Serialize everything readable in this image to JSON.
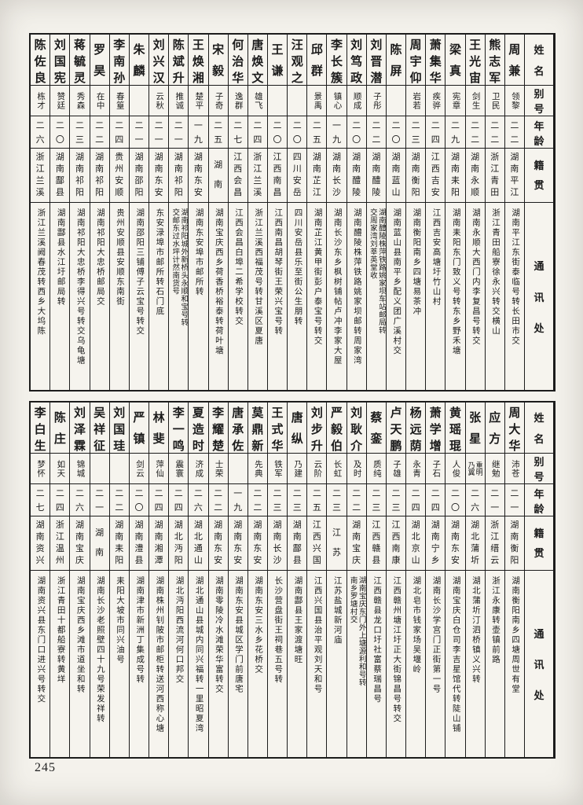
{
  "page": {
    "number": "245"
  },
  "headers": {
    "name": "姓名",
    "alias": "别号",
    "age": "年龄",
    "native": "籍贯",
    "address": "通讯处"
  },
  "tables": [
    {
      "people": [
        {
          "name": "周兼",
          "alias": "领黎",
          "age": "二二",
          "native": "湖南平江",
          "address": "湖南平江东街泰临号转长田市交"
        },
        {
          "name": "熊志军",
          "alias": "卫民",
          "age": "二二",
          "native": "浙江青田",
          "address": "浙江青田船寮徐永兴转交横山"
        },
        {
          "name": "王光宙",
          "alias": "剑生",
          "age": "二二",
          "native": "湖南永顺",
          "address": "湖南永顺大西门内李复昌号转交"
        },
        {
          "name": "梁真",
          "alias": "宪章",
          "age": "二九",
          "native": "湖南耒阳",
          "address": "湖南耒阳东门致义号转东乡野禾塘"
        },
        {
          "name": "萧集华",
          "alias": "疾骅",
          "age": "二四",
          "native": "江西吉安",
          "address": "江西吉安高塘圩竹山村"
        },
        {
          "name": "周宇仰",
          "alias": "岩若",
          "age": "二三",
          "native": "湖南衡阳",
          "address": "湖南衡阳南乡四塘易茶冲"
        },
        {
          "name": "陈屏",
          "alias": "",
          "age": "二〇",
          "native": "湖南蓝山",
          "address": "湖南蓝山县南平乡配义团广溪村交"
        },
        {
          "name": "刘晋潜",
          "alias": "子彤",
          "age": "二二",
          "native": "湖南醴陵",
          "address": "湖南醴陵株萍铁路姚家坝车站邮局转\n交周家湾刘莘英堂收"
        },
        {
          "name": "刘笃政",
          "alias": "顺成",
          "age": "二〇",
          "native": "湖南醴陵",
          "address": "湖南醴陵株萍铁路姚家坝邮转周家湾"
        },
        {
          "name": "李长簇",
          "alias": "镇心",
          "age": "一九",
          "native": "湖南长沙",
          "address": "湖南长沙东乡枫树铺帖卢冲李家大屋"
        },
        {
          "name": "邱群",
          "alias": "景禹",
          "age": "二五",
          "native": "湖南芷江",
          "address": "湖南芷江黄甲街彭户泰宝号转交"
        },
        {
          "name": "汪观之",
          "alias": "",
          "age": "二〇",
          "native": "四川安岳",
          "address": "四川安岳县乐至街公生朋转"
        },
        {
          "name": "王谦",
          "alias": "",
          "age": "二〇",
          "native": "江西南昌",
          "address": "江西南昌胡琴街王荣兴宝号转"
        },
        {
          "name": "唐焕文",
          "alias": "雄飞",
          "age": "二四",
          "native": "浙江兰溪",
          "address": "浙江兰溪西福茂号转甘溪区夏唐"
        },
        {
          "name": "何治华",
          "alias": "逸群",
          "age": "二七",
          "native": "江西会昌",
          "address": "江西会昌白埠二希学校转交"
        },
        {
          "name": "宋毅",
          "alias": "子奇",
          "age": "二五",
          "native": "湖南",
          "address": "湖南宝庆西乡荷香桥裕泰转荷叶塘"
        },
        {
          "name": "王焕湘",
          "alias": "楚平",
          "age": "一九",
          "native": "湖南东安",
          "address": "湖南东安埠市邮所转"
        },
        {
          "name": "陈斌升",
          "alias": "推诚",
          "age": "二一",
          "native": "湖南祁阳",
          "address": "湖南祁阳城外新桥头永顺和宝号转\n交邮东过水坪计然南货号"
        },
        {
          "name": "刘兴汉",
          "alias": "云秋",
          "age": "二一",
          "native": "湖南东安",
          "address": "东安渌埠市邮所转石门底"
        },
        {
          "name": "朱麟",
          "alias": "",
          "age": "二一",
          "native": "湖南邵阳",
          "address": "湖南邵阳三铺傅子云宝号转交"
        },
        {
          "name": "李南孙",
          "alias": "春篁",
          "age": "二四",
          "native": "贵州安顺",
          "address": "贵州安顺县安顺东南街"
        },
        {
          "name": "罗昊",
          "alias": "在中",
          "age": "二二",
          "native": "湖南祁阳",
          "address": "湖南祁阳大忠桥邮局交"
        },
        {
          "name": "蒋毓灵",
          "alias": "秀森",
          "age": "二三",
          "native": "湖南祁阳",
          "address": "湖南祁阳大忠桥李得兴号转交乌龟塘"
        },
        {
          "name": "刘国宪",
          "alias": "赞廷",
          "age": "二〇",
          "native": "湖南酃县",
          "address": "湖南酃县水江圩邮局转"
        },
        {
          "name": "陈佐良",
          "alias": "栋才",
          "age": "二六",
          "native": "浙江兰溪",
          "address": "浙江兰溪阙春茂转西乡大坞陈"
        }
      ]
    },
    {
      "people": [
        {
          "name": "周大华",
          "alias": "沛苍",
          "age": "二一",
          "native": "湖南衡阳",
          "address": "湖南衡阳南乡四塘周世有堂"
        },
        {
          "name": "应方",
          "alias": "继勉",
          "age": "二一",
          "native": "浙江缙云",
          "address": "浙江永康转壶镇前路"
        },
        {
          "name": "张星",
          "alias": "重明\n乃翼",
          "age": "二六",
          "native": "湖北蒲圻",
          "address": "湖北蒲圻汀泗桥镇义兴转"
        },
        {
          "name": "黄瑶琨",
          "alias": "人俊",
          "age": "二〇",
          "native": "湖南东安",
          "address": "湖南宝庆白仓司李吉星馆代转陡山铺"
        },
        {
          "name": "萧学增",
          "alias": "子石",
          "age": "二四",
          "native": "湖南宁乡",
          "address": "湖南长沙学宫门正街第一号"
        },
        {
          "name": "杨远荫",
          "alias": "永青",
          "age": "二四",
          "native": "湖北京山",
          "address": "湖北皂市钱家场吴堰岭"
        },
        {
          "name": "卢天鹏",
          "alias": "子雄",
          "age": "二三",
          "native": "江西南康",
          "address": "江西赣州塘江圩正大街锦昌号转交"
        },
        {
          "name": "蔡銮",
          "alias": "质纯",
          "age": "二三",
          "native": "江西赣县",
          "address": "江西赣县龙口圩社富蔡瑞昌号"
        },
        {
          "name": "刘耿介",
          "alias": "及时",
          "age": "二二",
          "native": "湖南宝庆",
          "address": "湖南宝庆东门外上塘源利和号转\n南乡罗塘村交"
        },
        {
          "name": "严毅伯",
          "alias": "长虹",
          "age": "二三",
          "native": "江苏",
          "address": "江苏盐城新河庙"
        },
        {
          "name": "刘步升",
          "alias": "云阶",
          "age": "二五",
          "native": "江西兴国",
          "address": "江西兴国县治平观刘天和号"
        },
        {
          "name": "唐纵",
          "alias": "乃建",
          "age": "二三",
          "native": "湖南酃县",
          "address": "湖南酃县王家渡塘旺"
        },
        {
          "name": "王式华",
          "alias": "铁军",
          "age": "二三",
          "native": "湖南长沙",
          "address": "长沙营盘街王祠巷五号转"
        },
        {
          "name": "莫鼎新",
          "alias": "先典",
          "age": "二二",
          "native": "湖南东安",
          "address": "湖南东安三水乡花桥交"
        },
        {
          "name": "唐承佐",
          "alias": "",
          "age": "一九",
          "native": "湖南东安",
          "address": "湖南东安县城区学门前唐宅"
        },
        {
          "name": "李耀楚",
          "alias": "士荣",
          "age": "二二",
          "native": "湖南东安",
          "address": "湖南零陵冷水滩荣华富转交"
        },
        {
          "name": "夏造时",
          "alias": "济成",
          "age": "二六",
          "native": "湖北通山",
          "address": "湖北通山县城内同兴福转一里昭夏湾"
        },
        {
          "name": "李一鸣",
          "alias": "震寰",
          "age": "二四",
          "native": "湖北沔阳",
          "address": "湖北沔阳西流河何口邦交"
        },
        {
          "name": "林斐",
          "alias": "萍仙",
          "age": "二四",
          "native": "湖南湘潭",
          "address": "湖南株州钊陂市邮柜转送河西称心塘"
        },
        {
          "name": "严镇",
          "alias": "剑云",
          "age": "二〇",
          "native": "湖南澧县",
          "address": "湖南津市新洲丁集成号转"
        },
        {
          "name": "刘国珪",
          "alias": "",
          "age": "二二",
          "native": "湖南耒阳",
          "address": "耒阳大坡市同兴油号"
        },
        {
          "name": "吴祥征",
          "alias": "",
          "age": "二一",
          "native": "湖南",
          "address": "湖南长沙老照壁四十九号荣发祥转"
        },
        {
          "name": "刘泽霖",
          "alias": "锦城",
          "age": "二六",
          "native": "湖南宝庆",
          "address": "湖南宝庆西乡滩市道坐和转"
        },
        {
          "name": "陈庄",
          "alias": "如天",
          "age": "二四",
          "native": "浙江温州",
          "address": "浙江青田十都船寮转黄垟"
        },
        {
          "name": "李白生",
          "alias": "梦怀",
          "age": "二七",
          "native": "湖南资兴",
          "address": "湖南资兴县东门口进兴号转交"
        }
      ]
    }
  ]
}
